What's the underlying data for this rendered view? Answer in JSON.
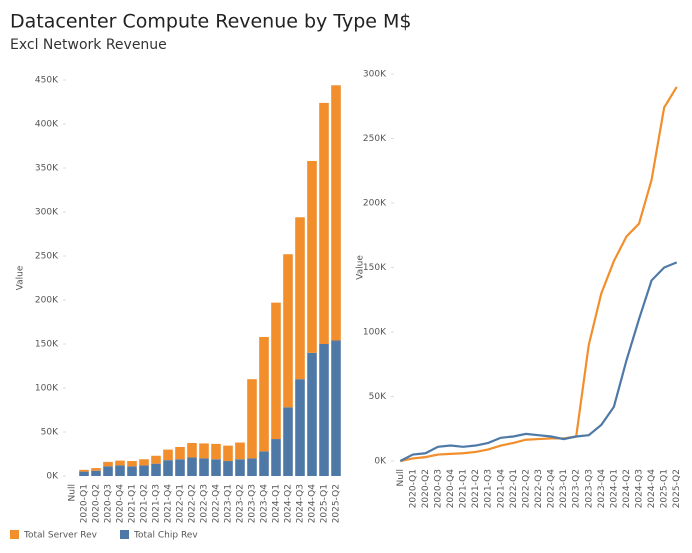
{
  "chart_data": [
    {
      "type": "bar",
      "stacked": true,
      "title": "Datacenter Compute Revenue by Type M$",
      "subtitle": "Excl Network Revenue",
      "y_label": "Value",
      "categories": [
        "Null",
        "2020-Q1",
        "2020-Q2",
        "2020-Q3",
        "2020-Q4",
        "2021-Q1",
        "2021-Q2",
        "2021-Q3",
        "2021-Q4",
        "2022-Q1",
        "2022-Q2",
        "2022-Q3",
        "2022-Q4",
        "2023-Q1",
        "2023-Q2",
        "2023-Q3",
        "2023-Q4",
        "2024-Q1",
        "2024-Q2",
        "2024-Q3",
        "2024-Q4",
        "2025-Q1",
        "2025-Q2"
      ],
      "series": [
        {
          "name": "Total Chip Rev",
          "color": "#4e79a7",
          "values": [
            0,
            5000,
            6000,
            11000,
            12000,
            11000,
            12000,
            14000,
            18000,
            19000,
            21000,
            20000,
            19000,
            17000,
            19000,
            20000,
            28000,
            42000,
            78000,
            110000,
            140000,
            150000,
            154000
          ]
        },
        {
          "name": "Total Server Rev",
          "color": "#f28e2b",
          "values": [
            0,
            2000,
            3000,
            5000,
            5500,
            6000,
            7000,
            9000,
            12000,
            14000,
            16500,
            17000,
            17500,
            17500,
            19000,
            90000,
            130000,
            155000,
            174000,
            184000,
            218000,
            274000,
            290000
          ]
        }
      ],
      "ylim": [
        0,
        450000
      ],
      "yticks": [
        {
          "value": 0,
          "label": "0K"
        },
        {
          "value": 50000,
          "label": "50K"
        },
        {
          "value": 100000,
          "label": "100K"
        },
        {
          "value": 150000,
          "label": "150K"
        },
        {
          "value": 200000,
          "label": "200K"
        },
        {
          "value": 250000,
          "label": "250K"
        },
        {
          "value": 300000,
          "label": "300K"
        },
        {
          "value": 350000,
          "label": "350K"
        },
        {
          "value": 400000,
          "label": "400K"
        },
        {
          "value": 450000,
          "label": "450K"
        }
      ],
      "grid": false
    },
    {
      "type": "line",
      "y_label": "Value",
      "categories": [
        "Null",
        "2020-Q1",
        "2020-Q2",
        "2020-Q3",
        "2020-Q4",
        "2021-Q1",
        "2021-Q2",
        "2021-Q3",
        "2021-Q4",
        "2022-Q1",
        "2022-Q2",
        "2022-Q3",
        "2022-Q4",
        "2023-Q1",
        "2023-Q2",
        "2023-Q3",
        "2023-Q4",
        "2024-Q1",
        "2024-Q2",
        "2024-Q3",
        "2024-Q4",
        "2025-Q1",
        "2025-Q2"
      ],
      "series": [
        {
          "name": "Total Server Rev",
          "color": "#f28e2b",
          "values": [
            0,
            2000,
            3000,
            5000,
            5500,
            6000,
            7000,
            9000,
            12000,
            14000,
            16500,
            17000,
            17500,
            17500,
            19000,
            90000,
            130000,
            155000,
            174000,
            184000,
            218000,
            274000,
            290000
          ]
        },
        {
          "name": "Total Chip Rev",
          "color": "#4e79a7",
          "values": [
            0,
            5000,
            6000,
            11000,
            12000,
            11000,
            12000,
            14000,
            18000,
            19000,
            21000,
            20000,
            19000,
            17000,
            19000,
            20000,
            28000,
            42000,
            78000,
            110000,
            140000,
            150000,
            154000
          ]
        }
      ],
      "ylim": [
        0,
        300000
      ],
      "yticks": [
        {
          "value": 0,
          "label": "0K"
        },
        {
          "value": 50000,
          "label": "50K"
        },
        {
          "value": 100000,
          "label": "100K"
        },
        {
          "value": 150000,
          "label": "150K"
        },
        {
          "value": 200000,
          "label": "200K"
        },
        {
          "value": 250000,
          "label": "250K"
        },
        {
          "value": 300000,
          "label": "300K"
        }
      ],
      "grid": false
    }
  ]
}
